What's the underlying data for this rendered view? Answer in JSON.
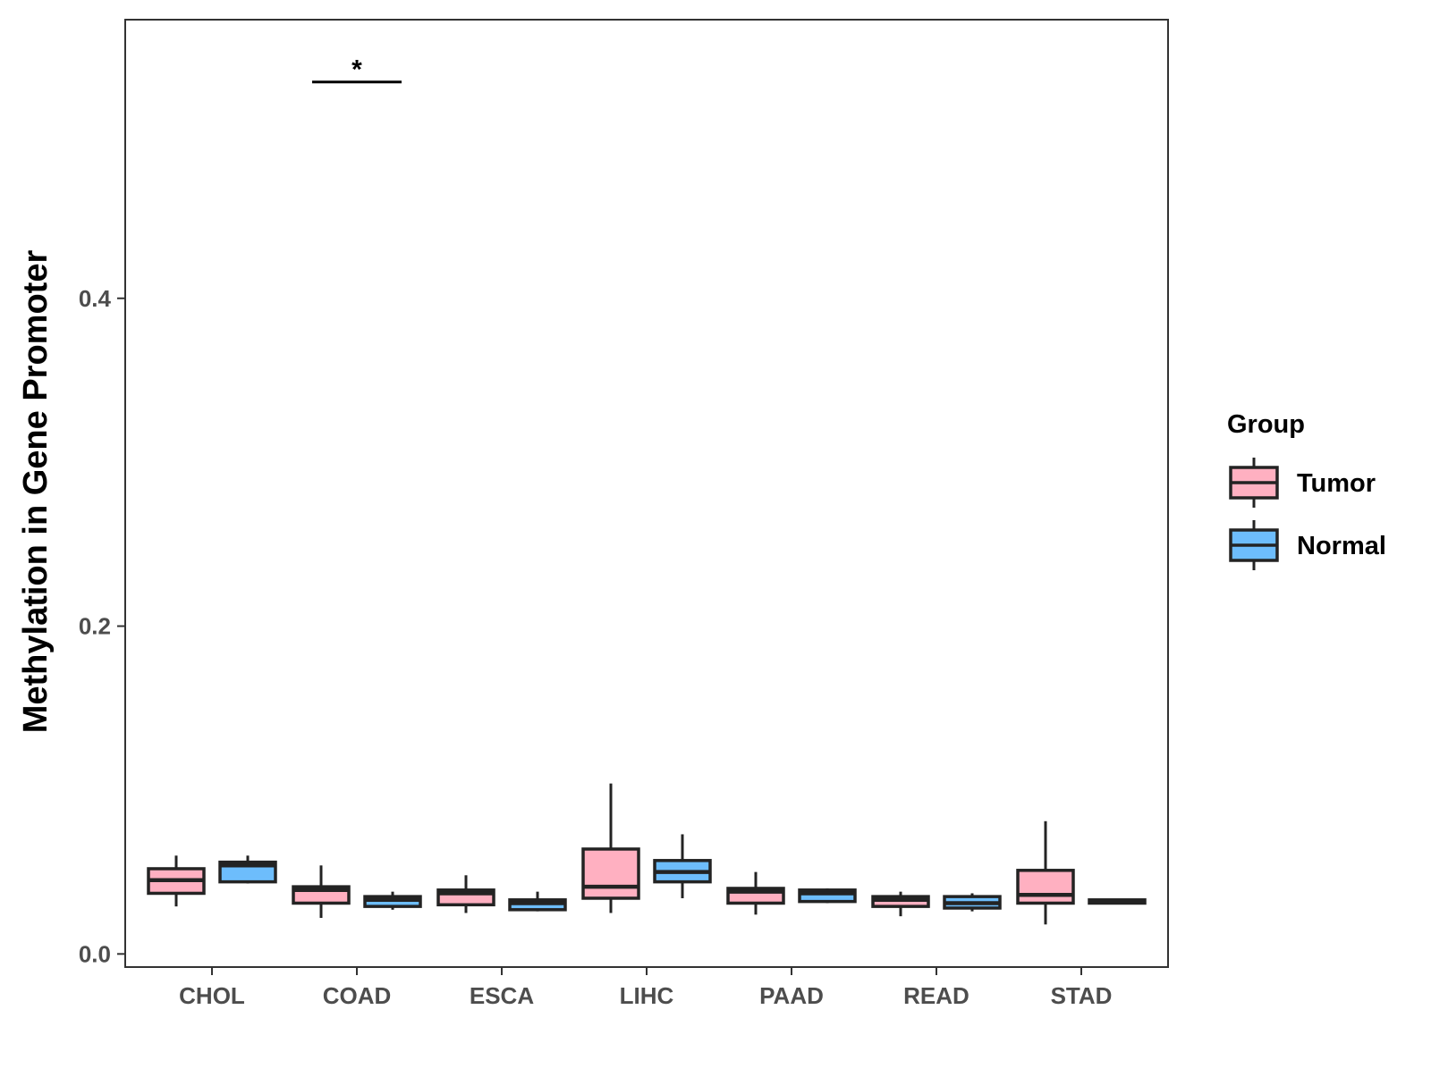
{
  "colors": {
    "tumor": "#FFB0C1",
    "normal": "#6DBDFC",
    "stroke": "#232323",
    "axis": "#333333",
    "tick_text": "#4d4d4d",
    "background": "#ffffff"
  },
  "chart_data": {
    "type": "box",
    "title": "",
    "xlabel": "",
    "ylabel": "Methylation in Gene Promoter",
    "ylim": [
      -0.008,
      0.57
    ],
    "y_ticks": [
      0.0,
      0.2,
      0.4
    ],
    "y_tick_labels": [
      "0.0",
      "0.2",
      "0.4"
    ],
    "categories": [
      "CHOL",
      "COAD",
      "ESCA",
      "LIHC",
      "PAAD",
      "READ",
      "STAD"
    ],
    "grid": false,
    "legend": {
      "title": "Group",
      "position": "right",
      "entries": [
        {
          "name": "Tumor",
          "color_key": "tumor"
        },
        {
          "name": "Normal",
          "color_key": "normal"
        }
      ]
    },
    "series": [
      {
        "name": "Tumor",
        "boxes": [
          {
            "category": "CHOL",
            "whisker_low": 0.029,
            "q1": 0.037,
            "median": 0.045,
            "q3": 0.052,
            "whisker_high": 0.06
          },
          {
            "category": "COAD",
            "whisker_low": 0.022,
            "q1": 0.031,
            "median": 0.039,
            "q3": 0.041,
            "whisker_high": 0.054
          },
          {
            "category": "ESCA",
            "whisker_low": 0.025,
            "q1": 0.03,
            "median": 0.037,
            "q3": 0.039,
            "whisker_high": 0.048
          },
          {
            "category": "LIHC",
            "whisker_low": 0.025,
            "q1": 0.034,
            "median": 0.041,
            "q3": 0.064,
            "whisker_high": 0.104
          },
          {
            "category": "PAAD",
            "whisker_low": 0.024,
            "q1": 0.031,
            "median": 0.038,
            "q3": 0.04,
            "whisker_high": 0.05
          },
          {
            "category": "READ",
            "whisker_low": 0.023,
            "q1": 0.029,
            "median": 0.033,
            "q3": 0.035,
            "whisker_high": 0.038
          },
          {
            "category": "STAD",
            "whisker_low": 0.018,
            "q1": 0.031,
            "median": 0.036,
            "q3": 0.051,
            "whisker_high": 0.081
          }
        ]
      },
      {
        "name": "Normal",
        "boxes": [
          {
            "category": "CHOL",
            "whisker_low": 0.043,
            "q1": 0.044,
            "median": 0.054,
            "q3": 0.056,
            "whisker_high": 0.06
          },
          {
            "category": "COAD",
            "whisker_low": 0.027,
            "q1": 0.029,
            "median": 0.033,
            "q3": 0.035,
            "whisker_high": 0.038
          },
          {
            "category": "ESCA",
            "whisker_low": 0.026,
            "q1": 0.027,
            "median": 0.031,
            "q3": 0.033,
            "whisker_high": 0.038
          },
          {
            "category": "LIHC",
            "whisker_low": 0.034,
            "q1": 0.044,
            "median": 0.05,
            "q3": 0.057,
            "whisker_high": 0.073
          },
          {
            "category": "PAAD",
            "whisker_low": 0.031,
            "q1": 0.032,
            "median": 0.037,
            "q3": 0.039,
            "whisker_high": 0.04
          },
          {
            "category": "READ",
            "whisker_low": 0.026,
            "q1": 0.028,
            "median": 0.031,
            "q3": 0.035,
            "whisker_high": 0.037
          },
          {
            "category": "STAD",
            "whisker_low": 0.031,
            "q1": 0.031,
            "median": 0.032,
            "q3": 0.033,
            "whisker_high": 0.033
          }
        ]
      }
    ],
    "annotations": [
      {
        "category": "COAD",
        "text": "*",
        "y": 0.532
      }
    ]
  }
}
